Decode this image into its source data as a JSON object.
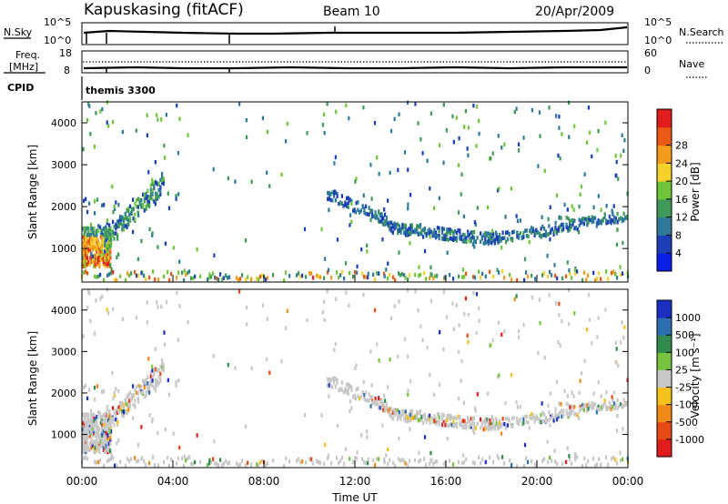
{
  "header": {
    "station": "Kapuskasing (fitACF)",
    "beam": "Beam 10",
    "date": "20/Apr/2009"
  },
  "top_panels": {
    "nsky_label": "N.Sky",
    "nsearch_label": "N.Search",
    "nsky_ticks": [
      "10^5",
      "10^0"
    ],
    "nsearch_ticks": [
      "10^5",
      "10^0"
    ],
    "freq_label_1": "Freq.",
    "freq_label_2": "[MHz]",
    "freq_ticks": [
      "18",
      "8"
    ],
    "nave_label": "Nave",
    "nave_ticks": [
      "60",
      "0"
    ],
    "cpid_label": "CPID",
    "cpid_value": "themis 3300"
  },
  "chart_data": [
    {
      "type": "heatmap",
      "title": "",
      "xlabel": "",
      "ylabel": "Slant Range [km]",
      "ylim": [
        200,
        4500
      ],
      "xlim": [
        0,
        24
      ],
      "y_ticks": [
        "1000",
        "2000",
        "3000",
        "4000"
      ],
      "colorbar_label": "Power [dB]",
      "colorbar_ticks": [
        "4",
        "8",
        "12",
        "16",
        "20",
        "24",
        "28"
      ],
      "colorbar_colors": [
        "#0a1ee6",
        "#1c3fb8",
        "#2f7a9a",
        "#3f9a5a",
        "#6ec53b",
        "#f4d12b",
        "#f39b1a",
        "#ea5a14",
        "#e01d1a"
      ],
      "grid": false,
      "features": [
        {
          "desc": "strong echoes near radar",
          "x": [
            0.0,
            1.3
          ],
          "y": [
            600,
            1500
          ],
          "power": [
            8,
            28
          ]
        },
        {
          "desc": "rising band",
          "x": [
            0.5,
            3.5
          ],
          "y": [
            1100,
            2600
          ],
          "power": [
            4,
            16
          ]
        },
        {
          "desc": "ground scatter band",
          "x": [
            10.8,
            24.0
          ],
          "y": [
            1100,
            2400
          ],
          "power": [
            4,
            10
          ]
        }
      ]
    },
    {
      "type": "heatmap",
      "title": "",
      "xlabel": "Time UT",
      "ylabel": "Slant Range [km]",
      "ylim": [
        200,
        4500
      ],
      "xlim": [
        0,
        24
      ],
      "y_ticks": [
        "1000",
        "2000",
        "3000",
        "4000"
      ],
      "x_ticks": [
        "00:00",
        "04:00",
        "08:00",
        "12:00",
        "16:00",
        "20:00",
        "00:00"
      ],
      "colorbar_label": "Velocity [m s⁻¹]",
      "colorbar_ticks": [
        "1000",
        "500",
        "100",
        "25",
        "-25",
        "-100",
        "-500",
        "-1000"
      ],
      "colorbar_colors": [
        "#1a2fc2",
        "#2c6fb0",
        "#2f8c4c",
        "#77c23f",
        "#c8c8c8",
        "#f5c21c",
        "#f08a18",
        "#e84a16",
        "#e01d1a"
      ],
      "grid": false
    }
  ]
}
